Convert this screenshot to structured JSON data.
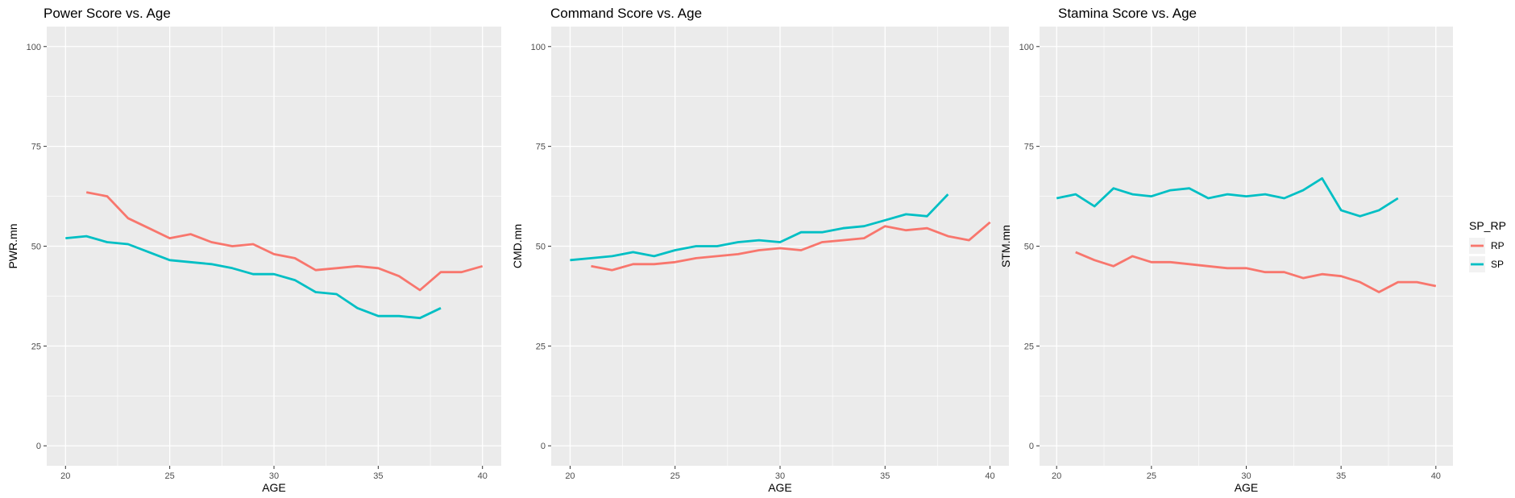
{
  "legend": {
    "title": "SP_RP",
    "placement": "right",
    "entries": [
      {
        "label": "RP",
        "color": "#F8766D"
      },
      {
        "label": "SP",
        "color": "#00BFC4"
      }
    ]
  },
  "colors": {
    "panel_bg": "#EBEBEB",
    "grid": "#FFFFFF",
    "RP": "#F8766D",
    "SP": "#00BFC4"
  },
  "chart_data": [
    {
      "type": "line",
      "title": "Power Score vs. Age",
      "xlabel": "AGE",
      "ylabel": "PWR.mn",
      "xlim": [
        19.1,
        40.9
      ],
      "ylim": [
        -5,
        105
      ],
      "xticks": [
        20,
        25,
        30,
        35,
        40
      ],
      "yticks": [
        0,
        25,
        50,
        75,
        100
      ],
      "grid": true,
      "series": [
        {
          "name": "RP",
          "x": [
            21,
            22,
            23,
            24,
            25,
            26,
            27,
            28,
            29,
            30,
            31,
            32,
            33,
            34,
            35,
            36,
            37,
            38,
            39,
            40
          ],
          "y": [
            63.5,
            62.5,
            57,
            54.5,
            52,
            53,
            51,
            50,
            50.5,
            48,
            47,
            44,
            44.5,
            45,
            44.5,
            42.5,
            39,
            43.5,
            43.5,
            45
          ]
        },
        {
          "name": "SP",
          "x": [
            20,
            21,
            22,
            23,
            24,
            25,
            26,
            27,
            28,
            29,
            30,
            31,
            32,
            33,
            34,
            35,
            36,
            37,
            38
          ],
          "y": [
            52,
            52.5,
            51,
            50.5,
            48.5,
            46.5,
            46,
            45.5,
            44.5,
            43,
            43,
            41.5,
            38.5,
            38,
            34.5,
            32.5,
            32.5,
            32,
            34.5
          ]
        }
      ]
    },
    {
      "type": "line",
      "title": "Command Score vs. Age",
      "xlabel": "AGE",
      "ylabel": "CMD.mn",
      "xlim": [
        19.1,
        40.9
      ],
      "ylim": [
        -5,
        105
      ],
      "xticks": [
        20,
        25,
        30,
        35,
        40
      ],
      "yticks": [
        0,
        25,
        50,
        75,
        100
      ],
      "grid": true,
      "series": [
        {
          "name": "RP",
          "x": [
            21,
            22,
            23,
            24,
            25,
            26,
            27,
            28,
            29,
            30,
            31,
            32,
            33,
            34,
            35,
            36,
            37,
            38,
            39,
            40
          ],
          "y": [
            45,
            44,
            45.5,
            45.5,
            46,
            47,
            47.5,
            48,
            49,
            49.5,
            49,
            51,
            51.5,
            52,
            55,
            54,
            54.5,
            52.5,
            51.5,
            56
          ]
        },
        {
          "name": "SP",
          "x": [
            20,
            21,
            22,
            23,
            24,
            25,
            26,
            27,
            28,
            29,
            30,
            31,
            32,
            33,
            34,
            35,
            36,
            37,
            38
          ],
          "y": [
            46.5,
            47,
            47.5,
            48.5,
            47.5,
            49,
            50,
            50,
            51,
            51.5,
            51,
            53.5,
            53.5,
            54.5,
            55,
            56.5,
            58,
            57.5,
            63
          ]
        }
      ]
    },
    {
      "type": "line",
      "title": "Stamina Score vs. Age",
      "xlabel": "AGE",
      "ylabel": "STM.mn",
      "xlim": [
        19.1,
        40.9
      ],
      "ylim": [
        -5,
        105
      ],
      "xticks": [
        20,
        25,
        30,
        35,
        40
      ],
      "yticks": [
        0,
        25,
        50,
        75,
        100
      ],
      "grid": true,
      "series": [
        {
          "name": "RP",
          "x": [
            21,
            22,
            23,
            24,
            25,
            26,
            27,
            28,
            29,
            30,
            31,
            32,
            33,
            34,
            35,
            36,
            37,
            38,
            39,
            40
          ],
          "y": [
            48.5,
            46.5,
            45,
            47.5,
            46,
            46,
            45.5,
            45,
            44.5,
            44.5,
            43.5,
            43.5,
            42,
            43,
            42.5,
            41,
            38.5,
            41,
            41,
            40
          ]
        },
        {
          "name": "SP",
          "x": [
            20,
            21,
            22,
            23,
            24,
            25,
            26,
            27,
            28,
            29,
            30,
            31,
            32,
            33,
            34,
            35,
            36,
            37,
            38
          ],
          "y": [
            62,
            63,
            60,
            64.5,
            63,
            62.5,
            64,
            64.5,
            62,
            63,
            62.5,
            63,
            62,
            64,
            67,
            59,
            57.5,
            59,
            62
          ]
        }
      ]
    }
  ]
}
